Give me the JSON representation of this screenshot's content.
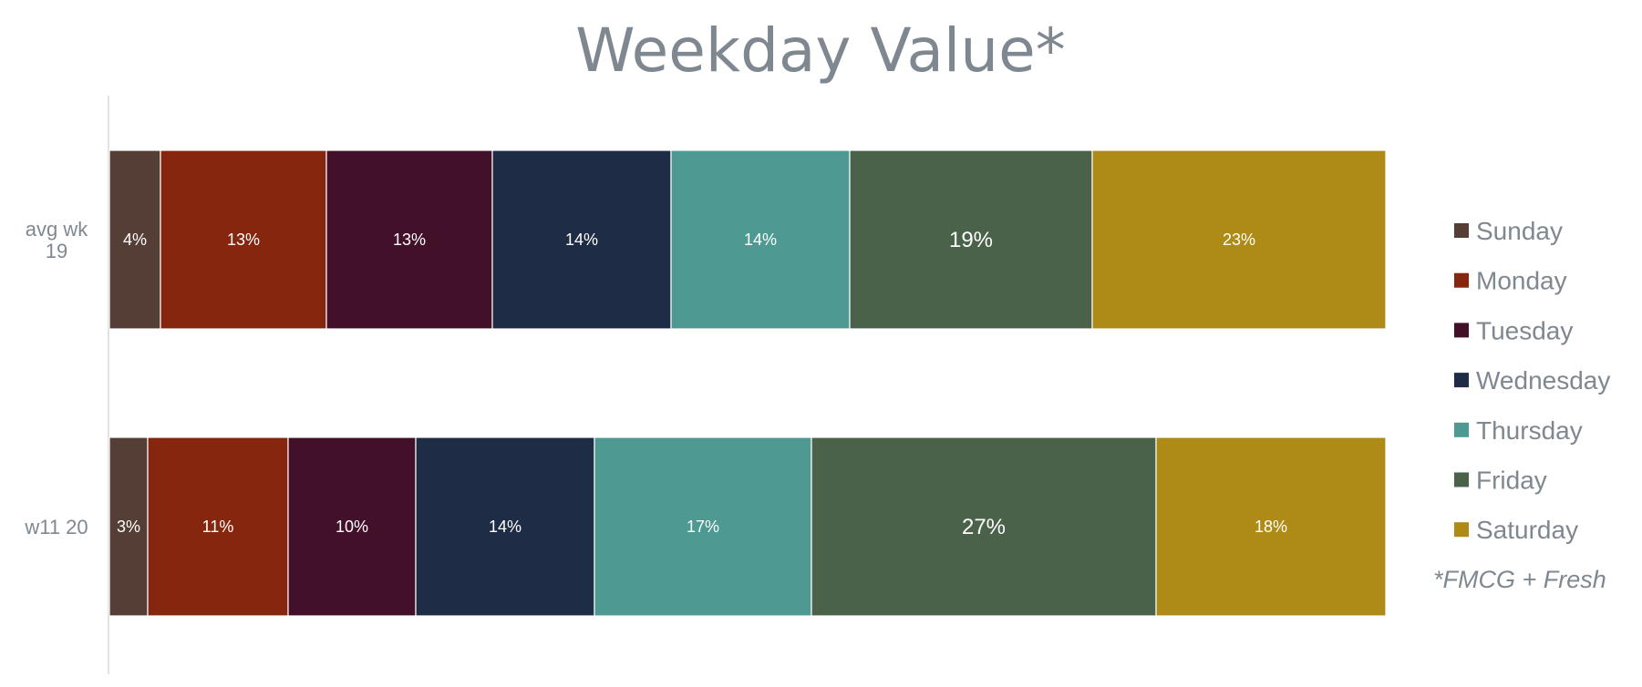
{
  "chart_data": {
    "type": "bar",
    "orientation": "horizontal",
    "stacked": "percent",
    "title": "Weekday Value*",
    "footnote": "*FMCG + Fresh",
    "categories": [
      "avg wk 19",
      "w11 20"
    ],
    "category_lines": [
      [
        "avg wk",
        "19"
      ],
      [
        "w11 20"
      ]
    ],
    "xlim": [
      0,
      100
    ],
    "grid": false,
    "legend_position": "right",
    "series": [
      {
        "name": "Sunday",
        "color": "#553e36",
        "values": [
          4,
          3
        ],
        "labels": [
          "4%",
          "3%"
        ]
      },
      {
        "name": "Monday",
        "color": "#86260f",
        "values": [
          13,
          11
        ],
        "labels": [
          "13%",
          "11%"
        ]
      },
      {
        "name": "Tuesday",
        "color": "#43102a",
        "values": [
          13,
          10
        ],
        "labels": [
          "13%",
          "10%"
        ]
      },
      {
        "name": "Wednesday",
        "color": "#1e2c46",
        "values": [
          14,
          14
        ],
        "labels": [
          "14%",
          "14%"
        ]
      },
      {
        "name": "Thursday",
        "color": "#4e9991",
        "values": [
          14,
          17
        ],
        "labels": [
          "14%",
          "17%"
        ]
      },
      {
        "name": "Friday",
        "color": "#4a614a",
        "values": [
          19,
          27
        ],
        "labels": [
          "19%",
          "27%"
        ]
      },
      {
        "name": "Saturday",
        "color": "#ae8b17",
        "values": [
          23,
          18
        ],
        "labels": [
          "23%",
          "18%"
        ]
      }
    ],
    "emphasized_labels": [
      [
        5
      ],
      [
        5
      ]
    ]
  }
}
